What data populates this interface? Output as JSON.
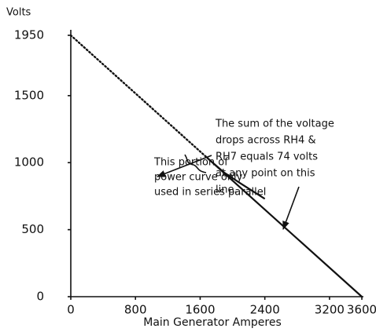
{
  "chart_data": {
    "type": "line",
    "y_label": "Volts",
    "x_label": "Main Generator Amperes",
    "xlim": [
      0,
      3600
    ],
    "xticks": [
      0,
      800,
      1600,
      2400,
      3200,
      3600
    ],
    "ylim": [
      0,
      1950
    ],
    "yticks": [
      0,
      500,
      1000,
      1500,
      1950
    ],
    "series": [
      {
        "color": "#111111",
        "style": "dotted",
        "x": [
          0,
          1700
        ],
        "values": [
          1950,
          1029
        ]
      },
      {
        "color": "#111111",
        "style": "solid",
        "x": [
          1700,
          3600
        ],
        "values": [
          1029,
          0
        ]
      },
      {
        "color": "#111111",
        "style": "solid",
        "x": [
          1700,
          1900,
          2100,
          2400
        ],
        "values": [
          1029,
          925,
          845,
          730
        ]
      }
    ],
    "annotations": [
      {
        "text": [
          "The sum of the voltage",
          "drops across RH4 &",
          "RH7 equals 74 volts",
          "at any point on this",
          "line."
        ]
      },
      {
        "text": [
          "This portion of",
          "power curve only",
          "used in series parallel"
        ]
      }
    ]
  }
}
